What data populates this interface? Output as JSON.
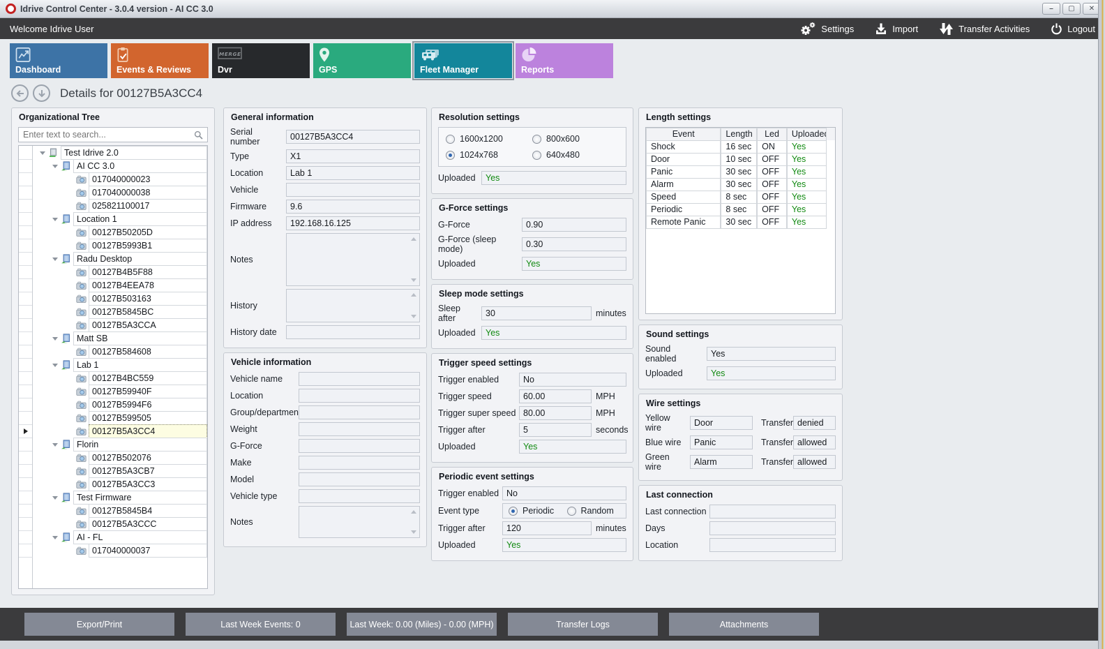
{
  "window": {
    "title": "Idrive Control Center - 3.0.4 version - AI CC 3.0",
    "logo_icon": "red-ring-logo",
    "controls": [
      {
        "name": "minimize",
        "glyph": "–"
      },
      {
        "name": "maximize",
        "glyph": "▢"
      },
      {
        "name": "close",
        "glyph": "✕"
      }
    ]
  },
  "topbar": {
    "welcome": "Welcome Idrive User",
    "actions": [
      {
        "label": "Settings",
        "icon": "gears-icon"
      },
      {
        "label": "Import",
        "icon": "import-arrow-icon"
      },
      {
        "label": "Transfer Activities",
        "icon": "transfer-arrows-icon"
      },
      {
        "label": "Logout",
        "icon": "power-icon"
      }
    ]
  },
  "tabs": [
    {
      "label": "Dashboard",
      "color": "#3d73a6",
      "icon": "line-chart-icon",
      "selected": false
    },
    {
      "label": "Events & Reviews",
      "color": "#d2652e",
      "icon": "clipboard-check-icon",
      "selected": false
    },
    {
      "label": "Dvr",
      "color": "#27292c",
      "icon": "merge-logo-icon",
      "selected": false
    },
    {
      "label": "GPS",
      "color": "#2aaa7e",
      "icon": "map-pin-icon",
      "selected": false
    },
    {
      "label": "Fleet Manager",
      "color": "#13869b",
      "icon": "vehicles-icon",
      "selected": true
    },
    {
      "label": "Reports",
      "color": "#bc82dd",
      "icon": "pie-chart-icon",
      "selected": false
    }
  ],
  "details": {
    "title": "Details for 00127B5A3CC4",
    "back_icon": "arrow-left-icon",
    "scroll_icon": "arrow-down-icon"
  },
  "tree": {
    "title": "Organizational Tree",
    "search_placeholder": "Enter text to search...",
    "search_icon": "magnifier-icon",
    "nodes": [
      {
        "label": "Test Idrive 2.0",
        "level": 0,
        "type": "org",
        "selected": false
      },
      {
        "label": "AI CC 3.0",
        "level": 1,
        "type": "group",
        "selected": false
      },
      {
        "label": "017040000023",
        "level": 2,
        "type": "device",
        "selected": false
      },
      {
        "label": "017040000038",
        "level": 2,
        "type": "device",
        "selected": false
      },
      {
        "label": "025821100017",
        "level": 2,
        "type": "device",
        "selected": false
      },
      {
        "label": "Location 1",
        "level": 1,
        "type": "group",
        "selected": false
      },
      {
        "label": "00127B50205D",
        "level": 2,
        "type": "device",
        "selected": false
      },
      {
        "label": "00127B5993B1",
        "level": 2,
        "type": "device",
        "selected": false
      },
      {
        "label": "Radu Desktop",
        "level": 1,
        "type": "group",
        "selected": false
      },
      {
        "label": "00127B4B5F88",
        "level": 2,
        "type": "device",
        "selected": false
      },
      {
        "label": "00127B4EEA78",
        "level": 2,
        "type": "device",
        "selected": false
      },
      {
        "label": "00127B503163",
        "level": 2,
        "type": "device",
        "selected": false
      },
      {
        "label": "00127B5845BC",
        "level": 2,
        "type": "device",
        "selected": false
      },
      {
        "label": "00127B5A3CCA",
        "level": 2,
        "type": "device",
        "selected": false
      },
      {
        "label": "Matt SB",
        "level": 1,
        "type": "group",
        "selected": false
      },
      {
        "label": "00127B584608",
        "level": 2,
        "type": "device",
        "selected": false
      },
      {
        "label": "Lab 1",
        "level": 1,
        "type": "group",
        "selected": false
      },
      {
        "label": "00127B4BC559",
        "level": 2,
        "type": "device",
        "selected": false
      },
      {
        "label": "00127B59940F",
        "level": 2,
        "type": "device",
        "selected": false
      },
      {
        "label": "00127B5994F6",
        "level": 2,
        "type": "device",
        "selected": false
      },
      {
        "label": "00127B599505",
        "level": 2,
        "type": "device",
        "selected": false
      },
      {
        "label": "00127B5A3CC4",
        "level": 2,
        "type": "device",
        "selected": true
      },
      {
        "label": "Florin",
        "level": 1,
        "type": "group",
        "selected": false
      },
      {
        "label": "00127B502076",
        "level": 2,
        "type": "device",
        "selected": false
      },
      {
        "label": "00127B5A3CB7",
        "level": 2,
        "type": "device",
        "selected": false
      },
      {
        "label": "00127B5A3CC3",
        "level": 2,
        "type": "device",
        "selected": false
      },
      {
        "label": "Test Firmware",
        "level": 1,
        "type": "group",
        "selected": false
      },
      {
        "label": "00127B5845B4",
        "level": 2,
        "type": "device",
        "selected": false
      },
      {
        "label": "00127B5A3CCC",
        "level": 2,
        "type": "device",
        "selected": false
      },
      {
        "label": "AI - FL",
        "level": 1,
        "type": "group",
        "selected": false
      },
      {
        "label": "017040000037",
        "level": 2,
        "type": "device",
        "selected": false
      }
    ]
  },
  "panels": {
    "general": {
      "title": "General information",
      "rows": [
        {
          "label": "Serial number",
          "value": "00127B5A3CC4"
        },
        {
          "label": "Type",
          "value": "X1"
        },
        {
          "label": "Location",
          "value": "Lab 1"
        },
        {
          "label": "Vehicle",
          "value": ""
        },
        {
          "label": "Firmware",
          "value": "9.6"
        },
        {
          "label": "IP address",
          "value": "192.168.16.125"
        },
        {
          "label": "Notes",
          "value": "",
          "type": "textarea-lg"
        },
        {
          "label": "History",
          "value": "",
          "type": "textarea-md"
        },
        {
          "label": "History date",
          "value": ""
        }
      ]
    },
    "vehicle": {
      "title": "Vehicle information",
      "rows": [
        {
          "label": "Vehicle name",
          "value": ""
        },
        {
          "label": "Location",
          "value": ""
        },
        {
          "label": "Group/department",
          "value": ""
        },
        {
          "label": "Weight",
          "value": ""
        },
        {
          "label": "G-Force",
          "value": ""
        },
        {
          "label": "Make",
          "value": ""
        },
        {
          "label": "Model",
          "value": ""
        },
        {
          "label": "Vehicle type",
          "value": ""
        },
        {
          "label": "Notes",
          "value": "",
          "type": "textarea-sm"
        }
      ]
    },
    "resolution": {
      "title": "Resolution settings",
      "options": [
        {
          "label": "1600x1200",
          "selected": false
        },
        {
          "label": "800x600",
          "selected": false
        },
        {
          "label": "1024x768",
          "selected": true
        },
        {
          "label": "640x480",
          "selected": false
        }
      ],
      "rows": [
        {
          "label": "Uploaded",
          "value": "Yes",
          "green": true
        }
      ]
    },
    "gforce": {
      "title": "G-Force settings",
      "rows": [
        {
          "label": "G-Force",
          "value": "0.90"
        },
        {
          "label": "G-Force (sleep mode)",
          "value": "0.30"
        },
        {
          "label": "Uploaded",
          "value": "Yes",
          "green": true
        }
      ]
    },
    "sleep": {
      "title": "Sleep mode settings",
      "rows": [
        {
          "label": "Sleep after",
          "value": "30",
          "suffix": "minutes"
        },
        {
          "label": "Uploaded",
          "value": "Yes",
          "green": true
        }
      ]
    },
    "trigger_speed": {
      "title": "Trigger speed settings",
      "rows": [
        {
          "label": "Trigger enabled",
          "value": "No"
        },
        {
          "label": "Trigger speed",
          "value": "60.00",
          "suffix": "MPH"
        },
        {
          "label": "Trigger super speed",
          "value": "80.00",
          "suffix": "MPH"
        },
        {
          "label": "Trigger after",
          "value": "5",
          "suffix": "seconds"
        },
        {
          "label": "Uploaded",
          "value": "Yes",
          "green": true
        }
      ]
    },
    "periodic": {
      "title": "Periodic event settings",
      "rows": [
        {
          "label": "Trigger enabled",
          "value": "No"
        },
        {
          "label": "Event type",
          "type": "radios",
          "options": [
            {
              "label": "Periodic",
              "selected": true
            },
            {
              "label": "Random",
              "selected": false
            }
          ]
        },
        {
          "label": "Trigger after",
          "value": "120",
          "suffix": "minutes"
        },
        {
          "label": "Uploaded",
          "value": "Yes",
          "green": true
        }
      ]
    },
    "length": {
      "title": "Length settings",
      "headers": [
        "Event",
        "Length",
        "Led",
        "Uploaded"
      ],
      "rows": [
        [
          "Shock",
          "16 sec",
          "ON",
          "Yes"
        ],
        [
          "Door",
          "10 sec",
          "OFF",
          "Yes"
        ],
        [
          "Panic",
          "30 sec",
          "OFF",
          "Yes"
        ],
        [
          "Alarm",
          "30 sec",
          "OFF",
          "Yes"
        ],
        [
          "Speed",
          "8 sec",
          "OFF",
          "Yes"
        ],
        [
          "Periodic",
          "8 sec",
          "OFF",
          "Yes"
        ],
        [
          "Remote Panic",
          "30 sec",
          "OFF",
          "Yes"
        ]
      ]
    },
    "sound": {
      "title": "Sound settings",
      "rows": [
        {
          "label": "Sound enabled",
          "value": "Yes"
        },
        {
          "label": "Uploaded",
          "value": "Yes",
          "green": true
        }
      ]
    },
    "wire": {
      "title": "Wire settings",
      "transfer_label": "Transfer",
      "rows": [
        {
          "wire": "Yellow wire",
          "event": "Door",
          "transfer": "denied"
        },
        {
          "wire": "Blue wire",
          "event": "Panic",
          "transfer": "allowed"
        },
        {
          "wire": "Green wire",
          "event": "Alarm",
          "transfer": "allowed"
        }
      ]
    },
    "last_connection": {
      "title": "Last connection",
      "rows": [
        {
          "label": "Last connection",
          "value": ""
        },
        {
          "label": "Days",
          "value": ""
        },
        {
          "label": "Location",
          "value": ""
        }
      ]
    }
  },
  "bottom_bar": {
    "buttons": [
      "Export/Print",
      "Last Week Events: 0",
      "Last Week: 0.00 (Miles) - 0.00 (MPH)",
      "Transfer Logs",
      "Attachments"
    ]
  }
}
